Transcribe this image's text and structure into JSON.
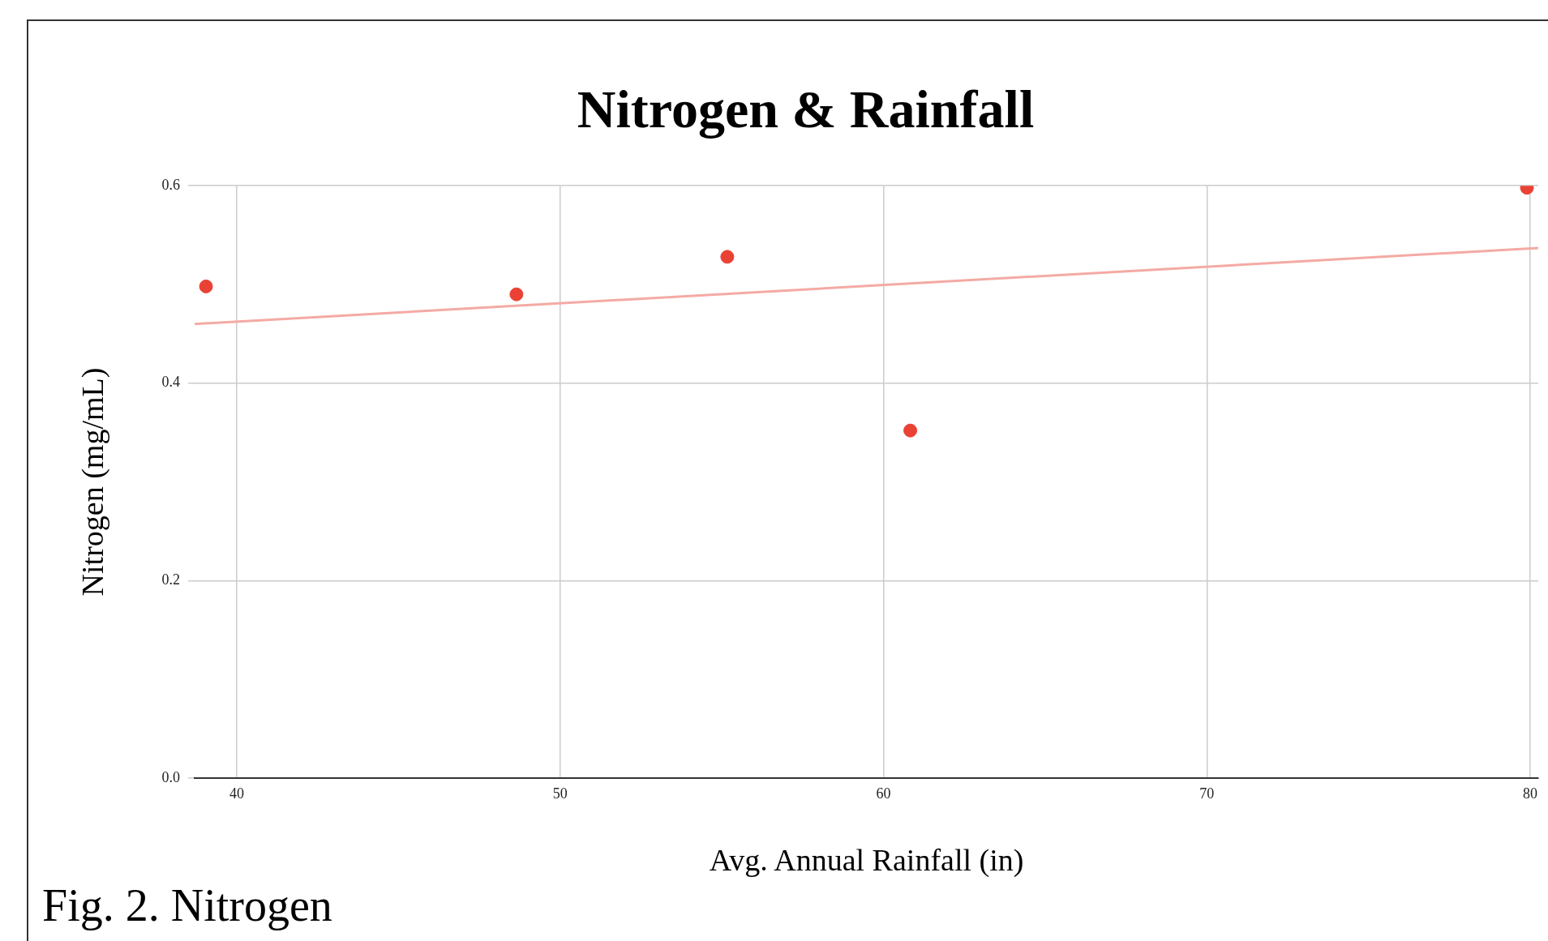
{
  "chart_data": {
    "type": "scatter",
    "title": "Nitrogen & Rainfall",
    "xlabel": "Avg. Annual Rainfall (in)",
    "ylabel": "Nitrogen (mg/mL)",
    "annotations": [
      "Fig. 2. Nitrogen"
    ],
    "series": [
      {
        "marker": "circle",
        "color": "#e94235",
        "x": [
          39.05,
          48.65,
          55.17,
          60.83,
          79.9
        ],
        "values": [
          0.498,
          0.49,
          0.528,
          0.352,
          0.598
        ]
      },
      {
        "type": "line",
        "marker": "none",
        "color": "#f4aaa4",
        "x": [
          38.7,
          80.25
        ],
        "values": [
          0.46,
          0.537
        ]
      }
    ],
    "xlim": [
      38.7,
      80.25
    ],
    "xticks": [
      40,
      50,
      60,
      70,
      80
    ],
    "ylim": [
      0,
      0.6
    ],
    "yticks": [
      {
        "value": 0,
        "label": "0.0"
      },
      0.2,
      0.4,
      0.6
    ],
    "grid": true,
    "legend": false
  }
}
